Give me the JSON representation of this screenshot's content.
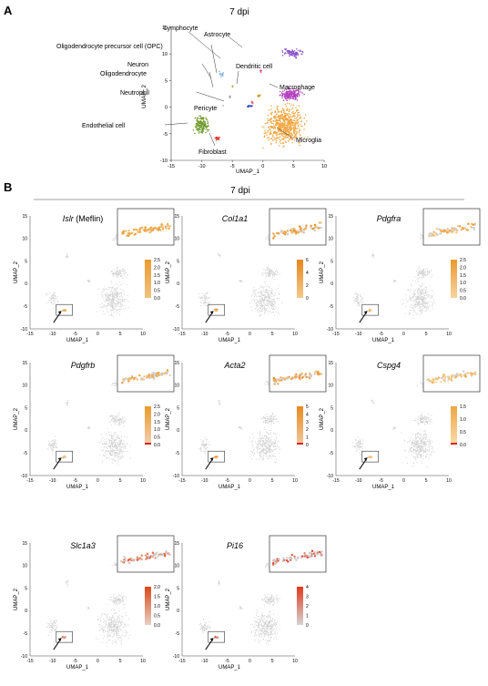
{
  "panels": [
    {
      "letter": "A",
      "title": "7 dpi"
    },
    {
      "letter": "B",
      "title": "7 dpi"
    }
  ],
  "umap": {
    "xlabel": "UMAP_1",
    "ylabel": "UMAP_2",
    "x_ticks": [
      -15,
      -10,
      -5,
      0,
      5,
      10
    ],
    "y_ticks": [
      -10,
      -5,
      0,
      5,
      10,
      15
    ],
    "xlim": [
      -15,
      10
    ],
    "ylim": [
      -10,
      15
    ]
  },
  "cell_types": [
    {
      "label": "Lymphocyte",
      "color": "#e04080"
    },
    {
      "label": "Astrocyte",
      "color": "#8a52c6"
    },
    {
      "label": "Oligodendrocyte precursor cell (OPC)",
      "color": "#7fb3e0"
    },
    {
      "label": "Neuron",
      "color": "#c8a04b"
    },
    {
      "label": "Oligodendrocyte",
      "color": "#9aa0a8"
    },
    {
      "label": "Dendritic cell",
      "color": "#c89d2a"
    },
    {
      "label": "Neutrophil",
      "color": "#2c3fbf"
    },
    {
      "label": "Macrophage",
      "color": "#b33fbe"
    },
    {
      "label": "Pericyte",
      "color": "#e07a8c"
    },
    {
      "label": "Endothelial cell",
      "color": "#6f9a2b"
    },
    {
      "label": "Fibroblast",
      "color": "#e0392a"
    },
    {
      "label": "Microglia",
      "color": "#f2a640"
    }
  ],
  "genes": [
    {
      "name": "Islr",
      "suffix": " (Meflin)",
      "legend": [
        "2.5",
        "2.0",
        "1.5",
        "1.0",
        "0.5",
        "0.0"
      ],
      "colors": [
        "#eb9b2e",
        "#f1c27d"
      ],
      "zero_red": false
    },
    {
      "name": "Col1a1",
      "suffix": "",
      "legend": [
        "6",
        "4",
        "2",
        "0"
      ],
      "colors": [
        "#e8871c",
        "#f4c98c"
      ],
      "zero_red": false
    },
    {
      "name": "Pdgfra",
      "suffix": "",
      "legend": [
        "2.5",
        "2.0",
        "1.5",
        "1.0",
        "0.5",
        "0.0"
      ],
      "colors": [
        "#ec9a2b",
        "#f6d3a2"
      ],
      "zero_red": false
    },
    {
      "name": "Pdgfrb",
      "suffix": "",
      "legend": [
        "2.5",
        "2.0",
        "1.5",
        "1.0",
        "0.5",
        "0.0"
      ],
      "colors": [
        "#ec9a2b",
        "#f3ceb0"
      ],
      "zero_red": true
    },
    {
      "name": "Acta2",
      "suffix": "",
      "legend": [
        "5",
        "4",
        "3",
        "2",
        "1",
        "0"
      ],
      "colors": [
        "#e88a1f",
        "#f1c79a"
      ],
      "zero_red": true
    },
    {
      "name": "Cspg4",
      "suffix": "",
      "legend": [
        "1.5",
        "1.0",
        "0.5",
        "0.0"
      ],
      "colors": [
        "#f0a640",
        "#f8dcae"
      ],
      "zero_red": true
    },
    {
      "name": "Slc1a3",
      "suffix": "",
      "legend": [
        "2.0",
        "1.5",
        "1.0",
        "0.5",
        "0.0"
      ],
      "colors": [
        "#dc4818",
        "#e7d0c4"
      ],
      "zero_red": false
    },
    {
      "name": "Pi16",
      "suffix": "",
      "legend": [
        "4",
        "3",
        "2",
        "1",
        "0"
      ],
      "colors": [
        "#e23a1c",
        "#d4d4d4"
      ],
      "zero_red": false
    }
  ]
}
